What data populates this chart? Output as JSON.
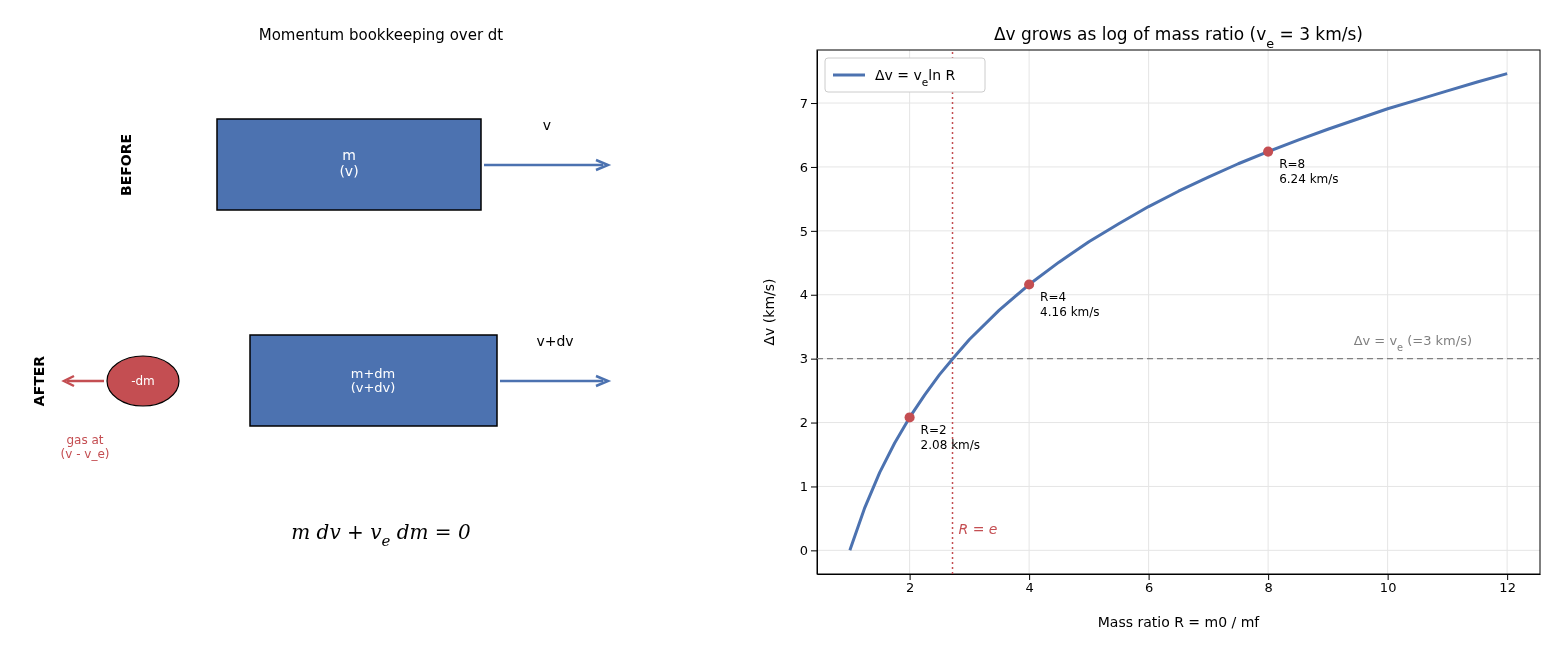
{
  "chart_data": [
    {
      "type": "other",
      "title": "Momentum bookkeeping over dt",
      "annotations": [
        "BEFORE",
        "m\n(v)",
        "v",
        "AFTER",
        "m+dm\n(v+dv)",
        "v+dv",
        "-dm",
        "gas at\n(v - v_e)",
        "m dv + v$_{e}$ dm = 0"
      ]
    },
    {
      "type": "line",
      "title": "Δv grows as log of mass ratio (v$_{e}$ = 3 km/s)",
      "xlabel": "Mass ratio  R = m0 / mf",
      "ylabel": "Δv  (km/s)",
      "xlim": [
        0.45,
        12.55
      ],
      "ylim": [
        -0.37,
        7.83
      ],
      "xticks": [
        2,
        4,
        6,
        8,
        10,
        12
      ],
      "yticks": [
        0,
        1,
        2,
        3,
        4,
        5,
        6,
        7
      ],
      "grid": true,
      "legend": "top left",
      "series": [
        {
          "name": "Δv = v$_{e}$ln R",
          "color": "#4c72b0",
          "x": [
            1,
            1.25,
            1.5,
            1.75,
            2,
            2.25,
            2.5,
            2.75,
            3,
            3.5,
            4,
            4.5,
            5,
            5.5,
            6,
            6.5,
            7,
            7.5,
            8,
            8.5,
            9,
            9.5,
            10,
            10.5,
            11,
            11.5,
            12
          ],
          "values": [
            0,
            0.67,
            1.22,
            1.68,
            2.08,
            2.43,
            2.75,
            3.03,
            3.3,
            3.76,
            4.16,
            4.51,
            4.83,
            5.11,
            5.38,
            5.62,
            5.84,
            6.05,
            6.24,
            6.42,
            6.59,
            6.75,
            6.91,
            7.05,
            7.19,
            7.33,
            7.46
          ]
        },
        {
          "type": "scatter",
          "color": "#c44e52",
          "marker": "circle",
          "x": [
            2,
            4,
            8
          ],
          "values": [
            2.08,
            4.16,
            6.24
          ]
        }
      ],
      "ref_lines": [
        {
          "axis": "y",
          "value": 3,
          "label": "Δv = v$_{e}$ (=3 km/s)",
          "color": "#808080",
          "line_style": "dashed"
        },
        {
          "axis": "x",
          "value": 2.718,
          "label": "R = e",
          "color": "#c44e52",
          "line_style": "dotted"
        }
      ],
      "annotations": [
        {
          "text": "R=2\n2.08 km/s",
          "x": 2,
          "y": 2.08
        },
        {
          "text": "R=4\n4.16 km/s",
          "x": 4,
          "y": 4.16
        },
        {
          "text": "R=8\n6.24 km/s",
          "x": 8,
          "y": 6.24
        }
      ]
    }
  ]
}
